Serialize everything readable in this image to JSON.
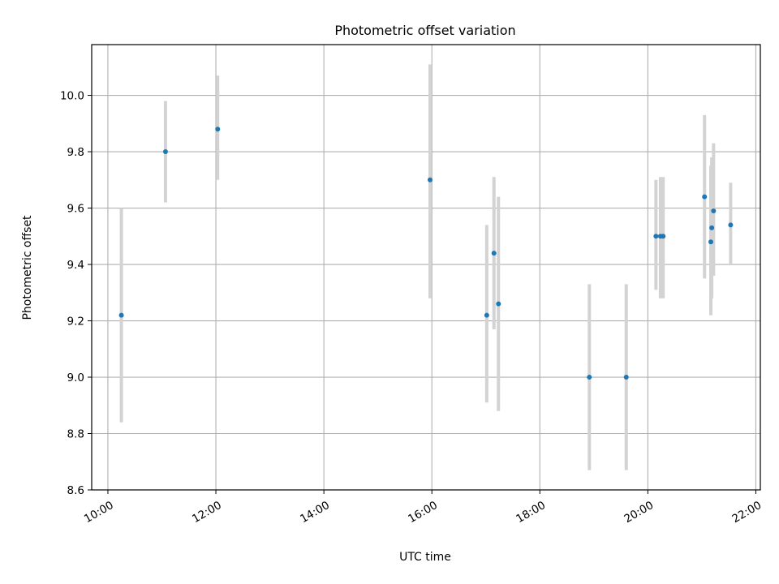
{
  "chart_data": {
    "type": "scatter",
    "title": "Photometric offset variation",
    "xlabel": "UTC time",
    "ylabel": "Photometric offset",
    "xlim": [
      "09:42",
      "22:05"
    ],
    "ylim": [
      8.6,
      10.18
    ],
    "x_ticks": [
      "10:00",
      "12:00",
      "14:00",
      "16:00",
      "18:00",
      "20:00",
      "22:00"
    ],
    "y_ticks": [
      "8.6",
      "8.8",
      "9.0",
      "9.2",
      "9.4",
      "9.6",
      "9.8",
      "10.0"
    ],
    "grid": true,
    "series": [
      {
        "marker_color": "#1f77b4",
        "error_color": "#d3d3d3",
        "points": [
          {
            "x": "10:15",
            "y": 9.22,
            "y_low": 8.84,
            "y_high": 9.6
          },
          {
            "x": "11:04",
            "y": 9.8,
            "y_low": 9.62,
            "y_high": 9.98
          },
          {
            "x": "12:02",
            "y": 9.88,
            "y_low": 9.7,
            "y_high": 10.07
          },
          {
            "x": "15:58",
            "y": 9.7,
            "y_low": 9.28,
            "y_high": 10.11
          },
          {
            "x": "17:01",
            "y": 9.22,
            "y_low": 8.91,
            "y_high": 9.54
          },
          {
            "x": "17:09",
            "y": 9.44,
            "y_low": 9.17,
            "y_high": 9.71
          },
          {
            "x": "17:14",
            "y": 9.26,
            "y_low": 8.88,
            "y_high": 9.64
          },
          {
            "x": "18:55",
            "y": 9.0,
            "y_low": 8.67,
            "y_high": 9.33
          },
          {
            "x": "19:36",
            "y": 9.0,
            "y_low": 8.67,
            "y_high": 9.33
          },
          {
            "x": "20:09",
            "y": 9.5,
            "y_low": 9.31,
            "y_high": 9.7
          },
          {
            "x": "20:14",
            "y": 9.5,
            "y_low": 9.28,
            "y_high": 9.71
          },
          {
            "x": "20:17",
            "y": 9.5,
            "y_low": 9.28,
            "y_high": 9.71
          },
          {
            "x": "21:03",
            "y": 9.64,
            "y_low": 9.35,
            "y_high": 9.93
          },
          {
            "x": "21:10",
            "y": 9.48,
            "y_low": 9.22,
            "y_high": 9.75
          },
          {
            "x": "21:11",
            "y": 9.53,
            "y_low": 9.28,
            "y_high": 9.78
          },
          {
            "x": "21:13",
            "y": 9.59,
            "y_low": 9.36,
            "y_high": 9.83
          },
          {
            "x": "21:32",
            "y": 9.54,
            "y_low": 9.4,
            "y_high": 9.69
          }
        ]
      }
    ]
  }
}
